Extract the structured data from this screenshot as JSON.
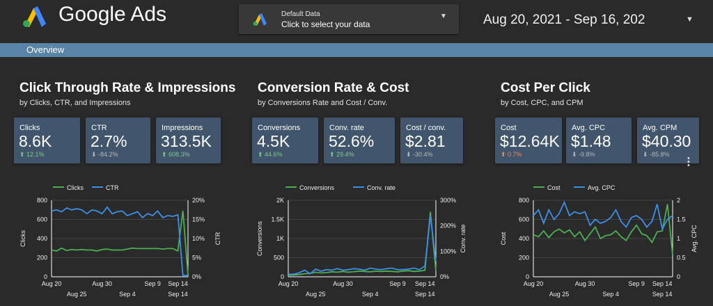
{
  "header": {
    "brand": "Google Ads",
    "data_selector": {
      "title": "Default Data",
      "subtitle": "Click to select your data"
    },
    "date_range": "Aug 20, 2021 - Sep 16, 202"
  },
  "nav": {
    "tab": "Overview"
  },
  "colors": {
    "green": "#4caf50",
    "blue": "#3d8fe8",
    "card": "#41566d",
    "accent_bar": "#5a83a8"
  },
  "sections": [
    {
      "title": "Click Through Rate & Impressions",
      "subtitle": "by Clicks, CTR, and Impressions",
      "cards": [
        {
          "label": "Clicks",
          "value": "8.6K",
          "change": "12.1%",
          "direction": "up",
          "tone": "positive"
        },
        {
          "label": "CTR",
          "value": "2.7%",
          "change": "-84.2%",
          "direction": "down",
          "tone": "neutral"
        },
        {
          "label": "Impressions",
          "value": "313.5K",
          "change": "608.3%",
          "direction": "up",
          "tone": "positive"
        }
      ]
    },
    {
      "title": "Conversion Rate & Cost",
      "subtitle": "by Conversions Rate and Cost / Conv.",
      "cards": [
        {
          "label": "Conversions",
          "value": "4.5K",
          "change": "44.6%",
          "direction": "up",
          "tone": "positive"
        },
        {
          "label": "Conv. rate",
          "value": "52.6%",
          "change": "29.4%",
          "direction": "up",
          "tone": "positive"
        },
        {
          "label": "Cost / conv.",
          "value": "$2.81",
          "change": "-30.4%",
          "direction": "down",
          "tone": "neutral"
        }
      ]
    },
    {
      "title": "Cost Per Click",
      "subtitle": "by Cost, CPC, and CPM",
      "cards": [
        {
          "label": "Cost",
          "value": "$12.64K",
          "change": "0.7%",
          "direction": "up",
          "tone": "negative"
        },
        {
          "label": "Avg. CPC",
          "value": "$1.48",
          "change": "-9.8%",
          "direction": "down",
          "tone": "neutral"
        },
        {
          "label": "Avg. CPM",
          "value": "$40.30",
          "change": "-85.8%",
          "direction": "down",
          "tone": "neutral"
        }
      ]
    }
  ],
  "chart_data": [
    {
      "type": "line",
      "x_tick_labels_top": [
        "Aug 20",
        "Aug 30",
        "Sep 9",
        "Sep 14"
      ],
      "x_tick_labels_bottom": [
        "Aug 25",
        "Sep 4",
        "Sep 14"
      ],
      "x": [
        "Aug 20",
        "Aug 21",
        "Aug 22",
        "Aug 23",
        "Aug 24",
        "Aug 25",
        "Aug 26",
        "Aug 27",
        "Aug 28",
        "Aug 29",
        "Aug 30",
        "Aug 31",
        "Sep 1",
        "Sep 2",
        "Sep 3",
        "Sep 4",
        "Sep 5",
        "Sep 6",
        "Sep 7",
        "Sep 8",
        "Sep 9",
        "Sep 10",
        "Sep 11",
        "Sep 12",
        "Sep 13",
        "Sep 14",
        "Sep 15",
        "Sep 16"
      ],
      "series": [
        {
          "name": "Clicks",
          "axis": "left",
          "color": "#4caf50",
          "values": [
            280,
            270,
            300,
            275,
            285,
            280,
            285,
            280,
            280,
            270,
            285,
            290,
            280,
            280,
            280,
            290,
            300,
            295,
            295,
            295,
            295,
            295,
            290,
            295,
            295,
            270,
            690,
            20
          ]
        },
        {
          "name": "CTR",
          "axis": "right",
          "color": "#3d8fe8",
          "values": [
            17.2,
            17.5,
            17.0,
            18.0,
            17.5,
            17.8,
            17.5,
            16.5,
            17.5,
            17.2,
            16.5,
            18.2,
            16.5,
            17.0,
            17.2,
            16.0,
            16.5,
            17.0,
            15.5,
            16.5,
            16.0,
            17.2,
            15.5,
            16.0,
            15.8,
            16.2,
            0.3,
            0.4
          ]
        }
      ],
      "left_axis": {
        "label": "Clicks",
        "ticks": [
          "0",
          "200",
          "400",
          "600",
          "800"
        ],
        "range": [
          0,
          800
        ]
      },
      "right_axis": {
        "label": "CTR",
        "ticks": [
          "0%",
          "5%",
          "10%",
          "15%",
          "20%"
        ],
        "range": [
          0,
          20
        ]
      },
      "legend": "top"
    },
    {
      "type": "line",
      "x_tick_labels_top": [
        "Aug 20",
        "Aug 30",
        "Sep 9",
        "Sep 14"
      ],
      "x_tick_labels_bottom": [
        "Aug 25",
        "Sep 4",
        "Sep 14"
      ],
      "x": [
        "Aug 20",
        "Aug 21",
        "Aug 22",
        "Aug 23",
        "Aug 24",
        "Aug 25",
        "Aug 26",
        "Aug 27",
        "Aug 28",
        "Aug 29",
        "Aug 30",
        "Aug 31",
        "Sep 1",
        "Sep 2",
        "Sep 3",
        "Sep 4",
        "Sep 5",
        "Sep 6",
        "Sep 7",
        "Sep 8",
        "Sep 9",
        "Sep 10",
        "Sep 11",
        "Sep 12",
        "Sep 13",
        "Sep 14",
        "Sep 15",
        "Sep 16"
      ],
      "series": [
        {
          "name": "Conversions",
          "axis": "left",
          "color": "#4caf50",
          "values": [
            40,
            45,
            60,
            80,
            90,
            120,
            100,
            110,
            130,
            120,
            140,
            120,
            135,
            150,
            140,
            130,
            145,
            140,
            150,
            140,
            130,
            150,
            160,
            140,
            150,
            170,
            1700,
            150
          ]
        },
        {
          "name": "Conv. rate",
          "axis": "right",
          "color": "#3d8fe8",
          "values": [
            10,
            10,
            16,
            26,
            12,
            30,
            22,
            28,
            26,
            32,
            26,
            28,
            32,
            30,
            26,
            34,
            30,
            28,
            32,
            34,
            28,
            28,
            30,
            34,
            28,
            42,
            240,
            60
          ]
        }
      ],
      "left_axis": {
        "label": "Conversions",
        "ticks": [
          "0",
          "500",
          "1K",
          "1.5K",
          "2K"
        ],
        "range": [
          0,
          2000
        ]
      },
      "right_axis": {
        "label": "Conv. rate",
        "ticks": [
          "0%",
          "100%",
          "200%",
          "300%"
        ],
        "range": [
          0,
          300
        ]
      },
      "legend": "top"
    },
    {
      "type": "line",
      "x_tick_labels_top": [
        "Aug 20",
        "Aug 30",
        "Sep 9",
        "Sep 14"
      ],
      "x_tick_labels_bottom": [
        "Aug 25",
        "Sep 4",
        "Sep 14"
      ],
      "x": [
        "Aug 20",
        "Aug 21",
        "Aug 22",
        "Aug 23",
        "Aug 24",
        "Aug 25",
        "Aug 26",
        "Aug 27",
        "Aug 28",
        "Aug 29",
        "Aug 30",
        "Aug 31",
        "Sep 1",
        "Sep 2",
        "Sep 3",
        "Sep 4",
        "Sep 5",
        "Sep 6",
        "Sep 7",
        "Sep 8",
        "Sep 9",
        "Sep 10",
        "Sep 11",
        "Sep 12",
        "Sep 13",
        "Sep 14",
        "Sep 15",
        "Sep 16"
      ],
      "series": [
        {
          "name": "Cost",
          "axis": "left",
          "color": "#4caf50",
          "values": [
            440,
            420,
            480,
            410,
            470,
            500,
            460,
            490,
            420,
            470,
            380,
            450,
            520,
            400,
            430,
            440,
            480,
            420,
            380,
            470,
            540,
            450,
            430,
            360,
            470,
            480,
            760,
            230
          ]
        },
        {
          "name": "Avg. CPC",
          "axis": "right",
          "color": "#3d8fe8",
          "values": [
            1.6,
            1.75,
            1.4,
            1.75,
            1.5,
            1.65,
            1.95,
            1.6,
            1.7,
            1.65,
            1.7,
            1.35,
            1.5,
            1.4,
            1.45,
            1.55,
            1.75,
            1.45,
            1.3,
            1.55,
            1.6,
            1.5,
            1.3,
            1.45,
            1.9,
            1.25,
            1.5,
            1.6
          ]
        }
      ],
      "left_axis": {
        "label": "Cost",
        "ticks": [
          "0",
          "200",
          "400",
          "600",
          "800"
        ],
        "range": [
          0,
          800
        ]
      },
      "right_axis": {
        "label": "Avg. CPC",
        "ticks": [
          "0",
          "0.5",
          "1",
          "1.5",
          "2"
        ],
        "range": [
          0,
          2
        ]
      },
      "legend": "top"
    }
  ]
}
